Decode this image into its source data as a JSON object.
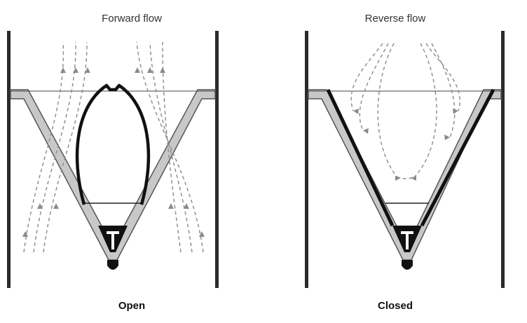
{
  "panels": [
    {
      "title": "Forward flow",
      "state": "Open"
    },
    {
      "title": "Reverse flow",
      "state": "Closed"
    }
  ],
  "colors": {
    "wall": "#2b2b2b",
    "cone_fill": "#c8c8c8",
    "valve_line": "#111111",
    "flow_line": "#8a8a8a"
  },
  "icons": [
    "dashed-flow-arrow",
    "t-marker-icon"
  ]
}
